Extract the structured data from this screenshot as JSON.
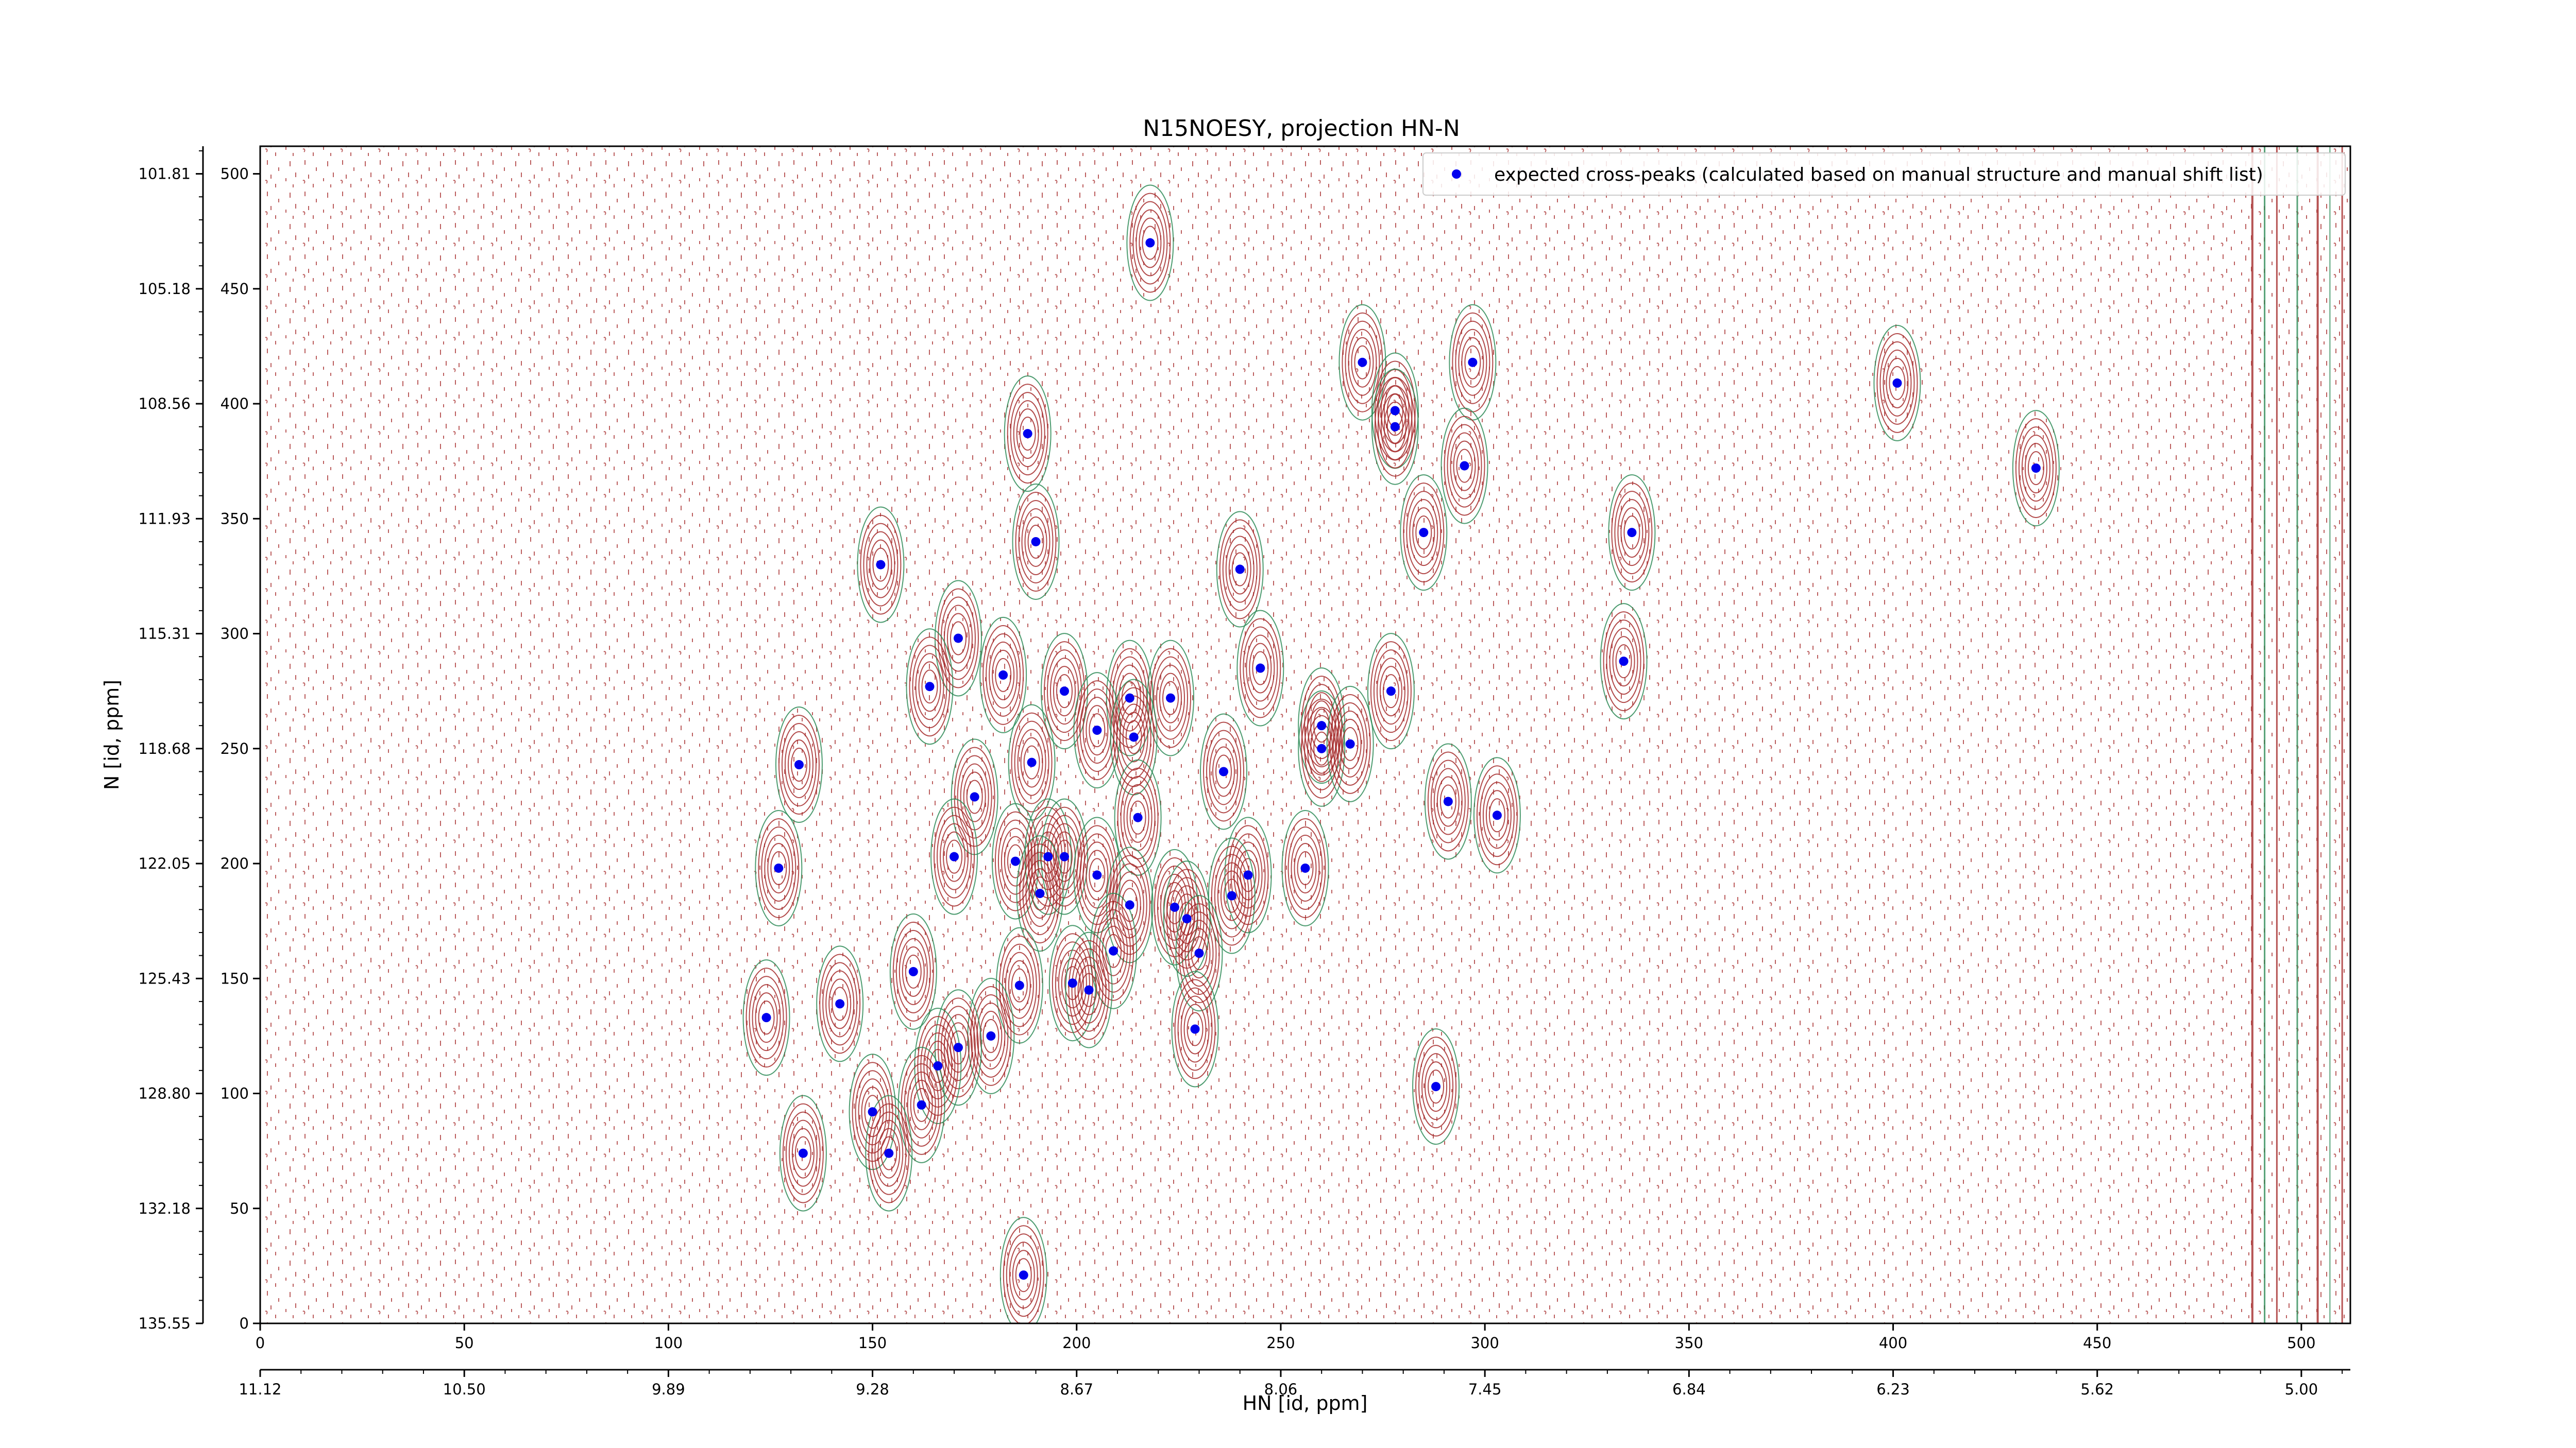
{
  "chart_data": {
    "type": "scatter",
    "title": "N15NOESY, projection HN-N",
    "xlabel": "HN [id, ppm]",
    "ylabel": "N [id, ppm]",
    "xlim": [
      0,
      512
    ],
    "ylim": [
      0,
      512
    ],
    "x_index_ticks": [
      "0",
      "50",
      "100",
      "150",
      "200",
      "250",
      "300",
      "350",
      "400",
      "450",
      "500"
    ],
    "x_ppm_ticks": [
      "11.12",
      "10.50",
      "9.89",
      "9.28",
      "8.67",
      "8.06",
      "7.45",
      "6.84",
      "6.23",
      "5.62",
      "5.00"
    ],
    "y_index_ticks": [
      "0",
      "50",
      "100",
      "150",
      "200",
      "250",
      "300",
      "350",
      "400",
      "450",
      "500"
    ],
    "y_ppm_ticks": [
      "135.55",
      "132.18",
      "128.80",
      "125.43",
      "122.05",
      "118.68",
      "115.31",
      "111.93",
      "108.56",
      "105.18",
      "101.81"
    ],
    "legend": {
      "location": "top-right",
      "entries": [
        "expected cross-peaks (calculated based on manual structure and manual shift list)"
      ]
    },
    "colors": {
      "marker": "#0000ee",
      "contour_positive": "#a52a2a",
      "contour_negative": "#2e8b57"
    },
    "series": [
      {
        "name": "expected cross-peaks (calculated based on manual structure and manual shift list)",
        "points": [
          [
            218,
            470
          ],
          [
            270,
            418
          ],
          [
            297,
            418
          ],
          [
            401,
            409
          ],
          [
            278,
            397
          ],
          [
            278,
            390
          ],
          [
            188,
            387
          ],
          [
            435,
            372
          ],
          [
            295,
            373
          ],
          [
            190,
            340
          ],
          [
            285,
            344
          ],
          [
            336,
            344
          ],
          [
            152,
            330
          ],
          [
            240,
            328
          ],
          [
            171,
            298
          ],
          [
            164,
            277
          ],
          [
            182,
            282
          ],
          [
            245,
            285
          ],
          [
            334,
            288
          ],
          [
            197,
            275
          ],
          [
            213,
            272
          ],
          [
            223,
            272
          ],
          [
            277,
            275
          ],
          [
            205,
            258
          ],
          [
            260,
            260
          ],
          [
            214,
            255
          ],
          [
            260,
            250
          ],
          [
            267,
            252
          ],
          [
            132,
            243
          ],
          [
            189,
            244
          ],
          [
            236,
            240
          ],
          [
            175,
            229
          ],
          [
            291,
            227
          ],
          [
            303,
            221
          ],
          [
            215,
            220
          ],
          [
            170,
            203
          ],
          [
            185,
            201
          ],
          [
            193,
            203
          ],
          [
            197,
            203
          ],
          [
            127,
            198
          ],
          [
            256,
            198
          ],
          [
            205,
            195
          ],
          [
            242,
            195
          ],
          [
            191,
            187
          ],
          [
            213,
            182
          ],
          [
            224,
            181
          ],
          [
            238,
            186
          ],
          [
            227,
            176
          ],
          [
            209,
            162
          ],
          [
            230,
            161
          ],
          [
            160,
            153
          ],
          [
            186,
            147
          ],
          [
            199,
            148
          ],
          [
            203,
            145
          ],
          [
            142,
            139
          ],
          [
            124,
            133
          ],
          [
            179,
            125
          ],
          [
            229,
            128
          ],
          [
            171,
            120
          ],
          [
            166,
            112
          ],
          [
            288,
            103
          ],
          [
            162,
            95
          ],
          [
            150,
            92
          ],
          [
            133,
            74
          ],
          [
            154,
            74
          ],
          [
            187,
            21
          ]
        ]
      }
    ]
  }
}
